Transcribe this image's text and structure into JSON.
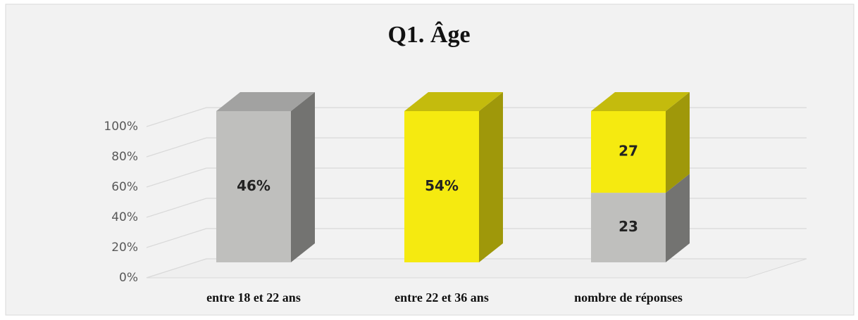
{
  "chart_data": {
    "type": "stacked100_bar3d",
    "title": "Q1. Âge",
    "categories": [
      "entre 18 et 22 ans",
      "entre 22 et 36 ans",
      "nombre de réponses"
    ],
    "series": [
      {
        "color": "#bfbfbd",
        "values": [
          46,
          null,
          23
        ],
        "value_labels": [
          "46%",
          null,
          "23"
        ]
      },
      {
        "color": "#f5ea10",
        "values": [
          null,
          54,
          27
        ],
        "value_labels": [
          null,
          "54%",
          "27"
        ]
      }
    ],
    "ylim": [
      0,
      100
    ],
    "yticks": [
      {
        "value": 0,
        "label": "0%"
      },
      {
        "value": 20,
        "label": "20%"
      },
      {
        "value": 40,
        "label": "40%"
      },
      {
        "value": 60,
        "label": "60%"
      },
      {
        "value": 80,
        "label": "80%"
      },
      {
        "value": 100,
        "label": "100%"
      }
    ],
    "grid": true
  }
}
